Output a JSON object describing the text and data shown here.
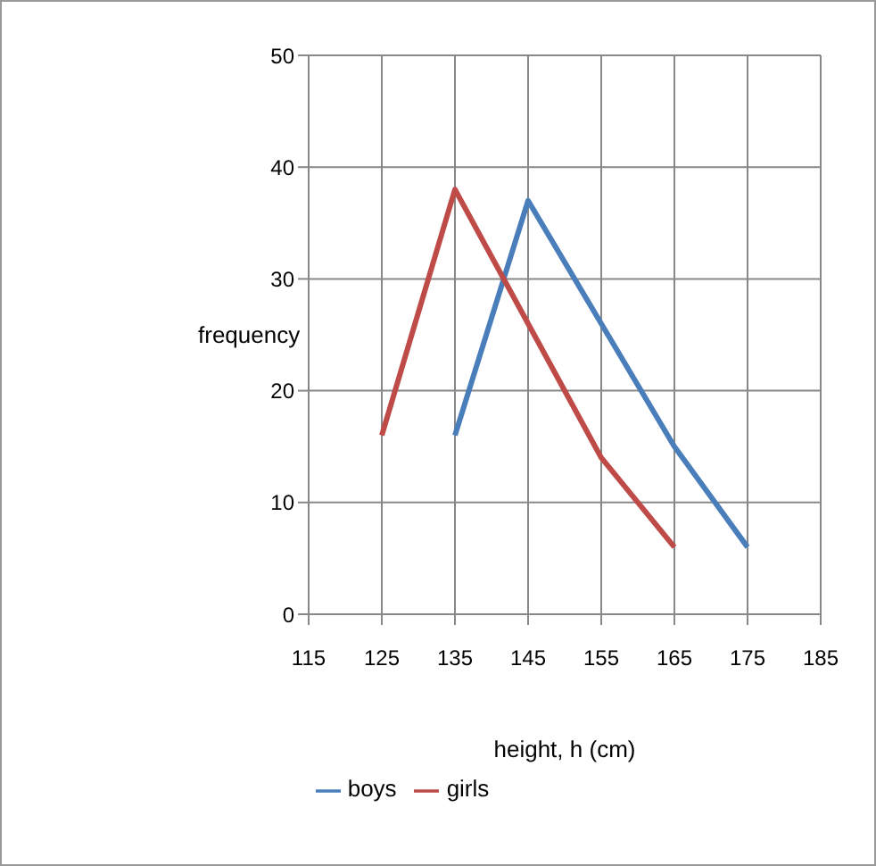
{
  "chart_data": {
    "type": "line",
    "xlabel": "height, h (cm)",
    "ylabel": "frequency",
    "series": [
      {
        "name": "boys",
        "color": "#4a7ebb",
        "x": [
          135,
          145,
          155,
          165,
          175
        ],
        "values": [
          16,
          37,
          26,
          15,
          6
        ]
      },
      {
        "name": "girls",
        "color": "#be4b48",
        "x": [
          125,
          135,
          145,
          155,
          165
        ],
        "values": [
          16,
          38,
          26,
          14,
          6
        ]
      }
    ],
    "xlim": [
      115,
      185
    ],
    "xticks": [
      115,
      125,
      135,
      145,
      155,
      165,
      175,
      185
    ],
    "ylim": [
      0,
      50
    ],
    "yticks": [
      0,
      10,
      20,
      30,
      40,
      50
    ],
    "grid": true,
    "legend": "bottom",
    "marker": "none",
    "line_style": "solid"
  }
}
